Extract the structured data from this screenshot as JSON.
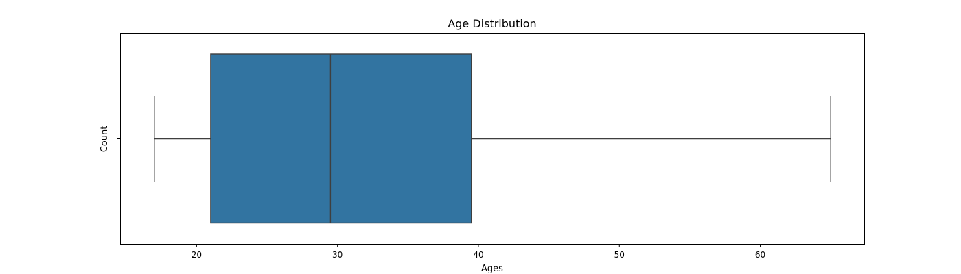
{
  "chart_data": {
    "type": "box",
    "title": "Age Distribution",
    "xlabel": "Ages",
    "ylabel": "Count",
    "xlim": [
      14.6,
      67.4
    ],
    "xticks": [
      20,
      30,
      40,
      50,
      60
    ],
    "xtick_labels": [
      "20",
      "30",
      "40",
      "50",
      "60"
    ],
    "box": {
      "whisker_low": 17,
      "q1": 21,
      "median": 29.5,
      "q3": 39.5,
      "whisker_high": 65
    },
    "grid": false,
    "box_color": "#3274a1",
    "line_color": "#3f3f3f"
  }
}
